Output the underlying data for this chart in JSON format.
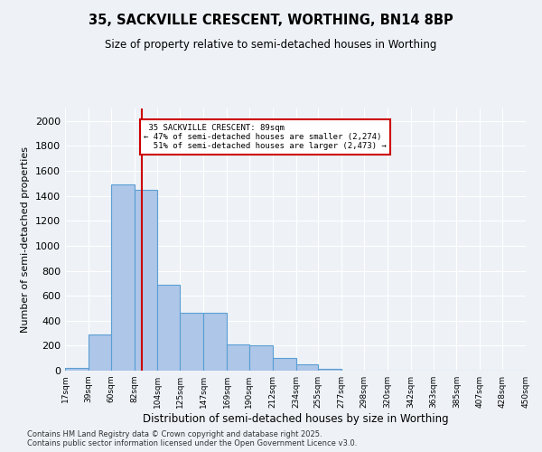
{
  "title_line1": "35, SACKVILLE CRESCENT, WORTHING, BN14 8BP",
  "title_line2": "Size of property relative to semi-detached houses in Worthing",
  "xlabel": "Distribution of semi-detached houses by size in Worthing",
  "ylabel": "Number of semi-detached properties",
  "property_size": 89,
  "property_label": "35 SACKVILLE CRESCENT: 89sqm",
  "smaller_pct": 47,
  "smaller_count": 2274,
  "larger_pct": 51,
  "larger_count": 2473,
  "bin_edges": [
    17,
    39,
    60,
    82,
    104,
    125,
    147,
    169,
    190,
    212,
    234,
    255,
    277,
    298,
    320,
    342,
    363,
    385,
    407,
    428,
    450
  ],
  "bar_heights": [
    20,
    290,
    1490,
    1450,
    690,
    460,
    460,
    210,
    200,
    100,
    50,
    15,
    0,
    0,
    0,
    0,
    0,
    0,
    0,
    0
  ],
  "bar_color": "#aec6e8",
  "bar_edge_color": "#5a9fd4",
  "red_line_color": "#cc0000",
  "annotation_box_color": "#cc0000",
  "background_color": "#eef2f7",
  "grid_color": "#ffffff",
  "ylim": [
    0,
    2100
  ],
  "yticks": [
    0,
    200,
    400,
    600,
    800,
    1000,
    1200,
    1400,
    1600,
    1800,
    2000
  ],
  "footer_line1": "Contains HM Land Registry data © Crown copyright and database right 2025.",
  "footer_line2": "Contains public sector information licensed under the Open Government Licence v3.0."
}
